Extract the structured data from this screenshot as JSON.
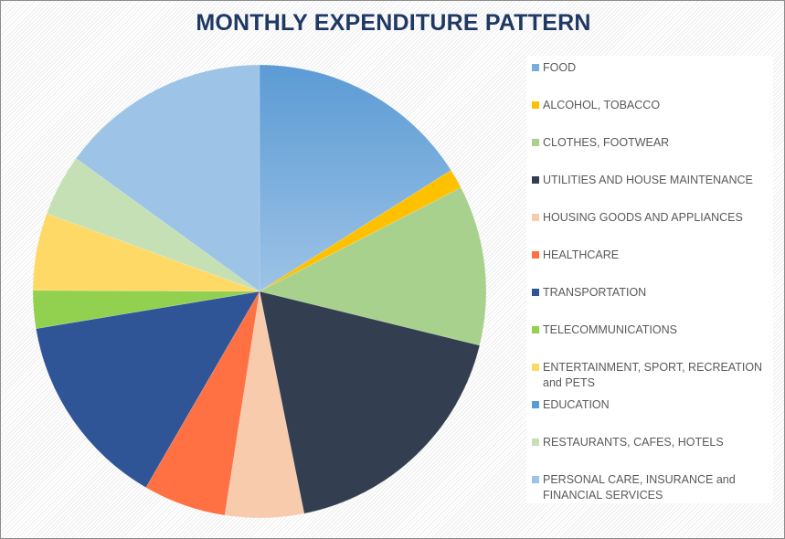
{
  "chart_data": {
    "type": "pie",
    "title": "MONTHLY EXPENDITURE PATTERN",
    "legend_position": "right",
    "categories": [
      "FOOD",
      "ALCOHOL, TOBACCO",
      "CLOTHES, FOOTWEAR",
      "UTILITIES AND HOUSE MAINTENANCE",
      "HOUSING GOODS AND APPLIANCES",
      "HEALTHCARE",
      "TRANSPORTATION",
      "TELECOMMUNICATIONS",
      "ENTERTAINMENT, SPORT, RECREATION and PETS",
      "EDUCATION",
      "RESTAURANTS, CAFES, HOTELS",
      "PERSONAL CARE, INSURANCE and FINANCIAL SERVICES"
    ],
    "values": [
      16.0,
      1.4,
      11.4,
      18.0,
      5.6,
      5.9,
      14.0,
      2.7,
      5.5,
      0,
      4.4,
      15.0
    ],
    "colors": [
      "#7aaddf",
      "#ffc000",
      "#a9d18e",
      "#333f50",
      "#f8cbad",
      "#ff7043",
      "#2f5597",
      "#92d050",
      "#ffd966",
      "#5b9bd5",
      "#c5e0b4",
      "#9dc3e6"
    ]
  }
}
